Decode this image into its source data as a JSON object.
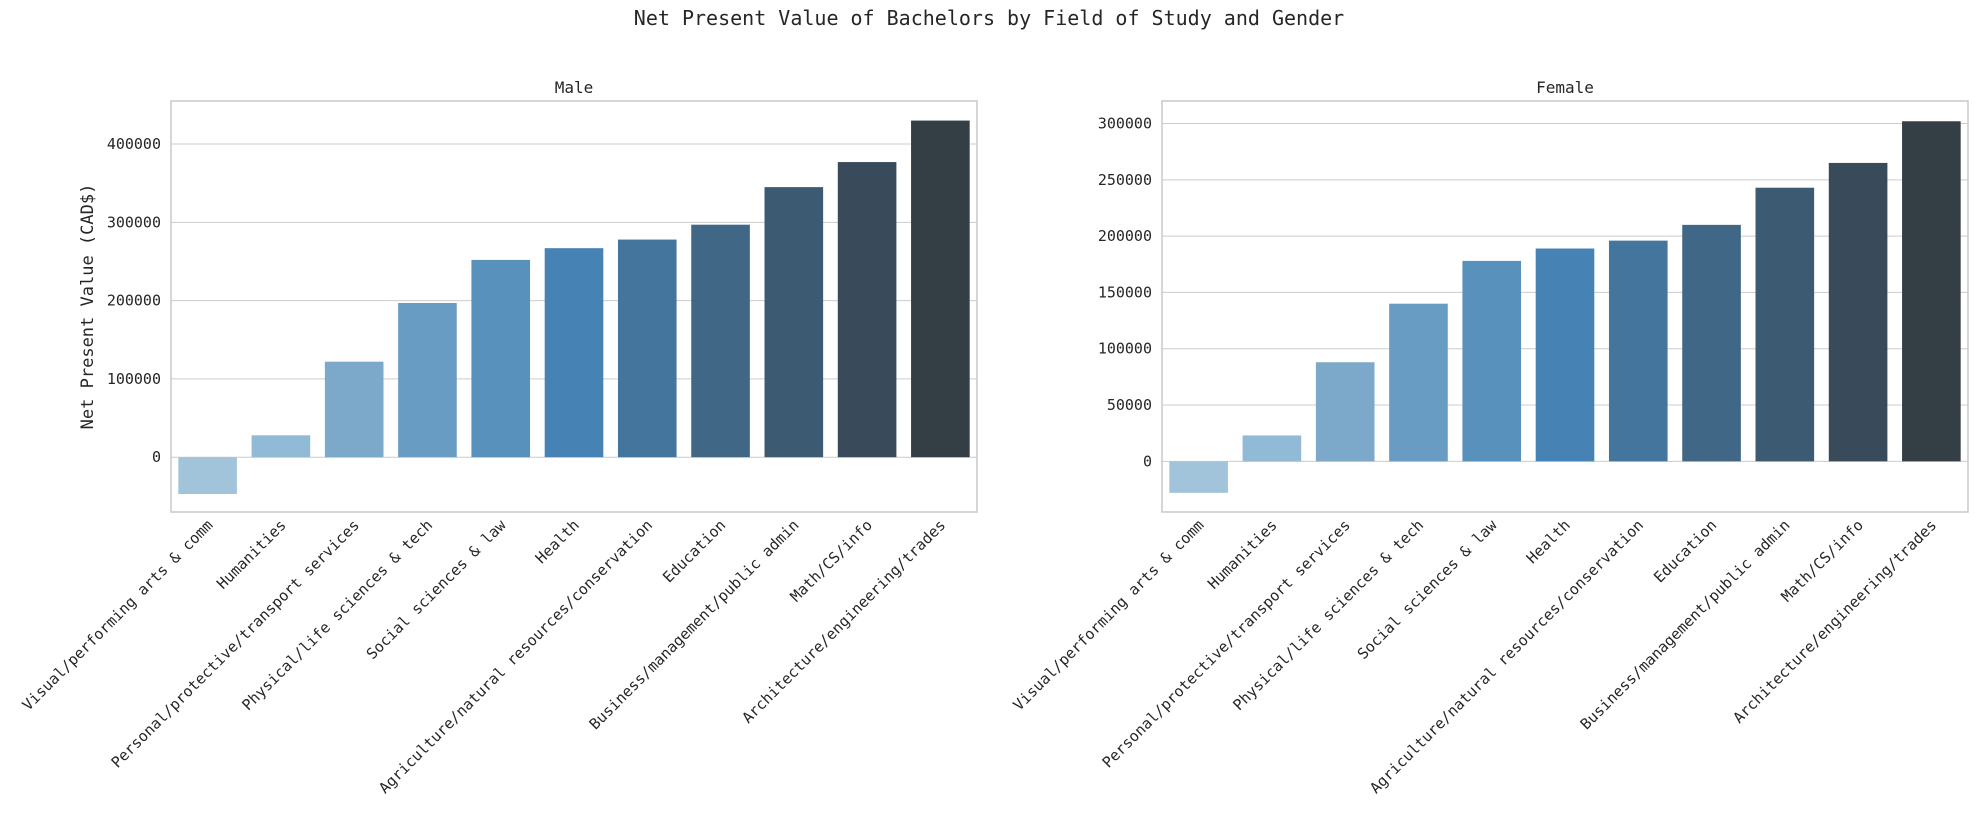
{
  "chart_data": {
    "type": "bar",
    "title": "Net Present Value of Bachelors by Field of Study and Gender",
    "ylabel": "Net Present Value (CAD$)",
    "categories": [
      "Visual/performing arts & comm",
      "Humanities",
      "Personal/protective/transport services",
      "Physical/life sciences & tech",
      "Social sciences & law",
      "Health",
      "Agriculture/natural resources/conservation",
      "Education",
      "Business/management/public admin",
      "Math/CS/info",
      "Architecture/engineering/trades"
    ],
    "colors": [
      "#a2c4db",
      "#91bad7",
      "#7ca9c9",
      "#699cc3",
      "#5891bb",
      "#4682b4",
      "#44769d",
      "#416786",
      "#3d5a73",
      "#394b5a",
      "#343e45"
    ],
    "panels": [
      {
        "subtitle": "Male",
        "ylim": [
          -70000,
          455000
        ],
        "yticks": [
          0,
          100000,
          200000,
          300000,
          400000
        ],
        "values": [
          -47000,
          28000,
          122000,
          197000,
          252000,
          267000,
          278000,
          297000,
          345000,
          377000,
          430000
        ]
      },
      {
        "subtitle": "Female",
        "ylim": [
          -45000,
          320000
        ],
        "yticks": [
          0,
          50000,
          100000,
          150000,
          200000,
          250000,
          300000
        ],
        "values": [
          -28000,
          23000,
          88000,
          140000,
          178000,
          189000,
          196000,
          210000,
          243000,
          265000,
          302000
        ]
      }
    ]
  }
}
